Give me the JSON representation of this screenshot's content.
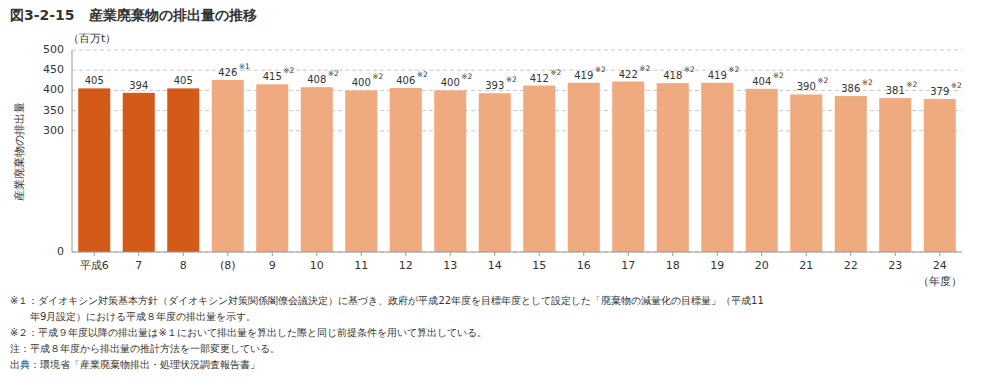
{
  "chart_data": {
    "type": "bar",
    "title": "図3-2-15　産業廃棄物の排出量の推移",
    "ylabel": "産業廃棄物の排出量",
    "y_unit_label": "（百万t）",
    "xlabel": "（年度）",
    "categories": [
      "平成6",
      "7",
      "8",
      "(8)",
      "9",
      "10",
      "11",
      "12",
      "13",
      "14",
      "15",
      "16",
      "17",
      "18",
      "19",
      "20",
      "21",
      "22",
      "23",
      "24"
    ],
    "values": [
      405,
      394,
      405,
      426,
      415,
      408,
      400,
      406,
      400,
      393,
      412,
      419,
      422,
      418,
      419,
      404,
      390,
      386,
      381,
      379
    ],
    "colors": [
      "#d45a1a",
      "#d45a1a",
      "#d45a1a",
      "#f0aa80",
      "#f0aa80",
      "#f0aa80",
      "#f0aa80",
      "#f0aa80",
      "#f0aa80",
      "#f0aa80",
      "#f0aa80",
      "#f0aa80",
      "#f0aa80",
      "#f0aa80",
      "#f0aa80",
      "#f0aa80",
      "#f0aa80",
      "#f0aa80",
      "#f0aa80",
      "#f0aa80"
    ],
    "ylim": [
      0,
      500
    ],
    "yticks": [
      0,
      300,
      350,
      400,
      450,
      500
    ],
    "grid": true,
    "data_labels": true,
    "annotations": [
      {
        "text": "※1",
        "category": "(8)"
      },
      {
        "text": "※2",
        "category": "9"
      },
      {
        "text": "※2",
        "category": "10"
      },
      {
        "text": "※2",
        "category": "11"
      },
      {
        "text": "※2",
        "category": "12"
      },
      {
        "text": "※2",
        "category": "13"
      },
      {
        "text": "※2",
        "category": "14"
      },
      {
        "text": "※2",
        "category": "15"
      },
      {
        "text": "※2",
        "category": "16"
      },
      {
        "text": "※2",
        "category": "17"
      },
      {
        "text": "※2",
        "category": "18"
      },
      {
        "text": "※2",
        "category": "19"
      },
      {
        "text": "※2",
        "category": "20"
      },
      {
        "text": "※2",
        "category": "21"
      },
      {
        "text": "※2",
        "category": "22"
      },
      {
        "text": "※2",
        "category": "23"
      },
      {
        "text": "※2",
        "category": "24"
      }
    ],
    "footnotes": [
      "※１：ダイオキシン対策基本方針（ダイオキシン対策関係閣僚会議決定）に基づき、政府が平成22年度を目標年度として設定した「廃棄物の減量化の目標量」（平成11",
      "　　年9月設定）における平成８年度の排出量を示す。",
      "※２：平成９年度以降の排出量は※１において排出量を算出した際と同じ前提条件を用いて算出している。",
      "注：平成８年度から排出量の推計方法を一部変更している。",
      "出典：環境省「産業廃棄物排出・処理状況調査報告書」"
    ]
  }
}
